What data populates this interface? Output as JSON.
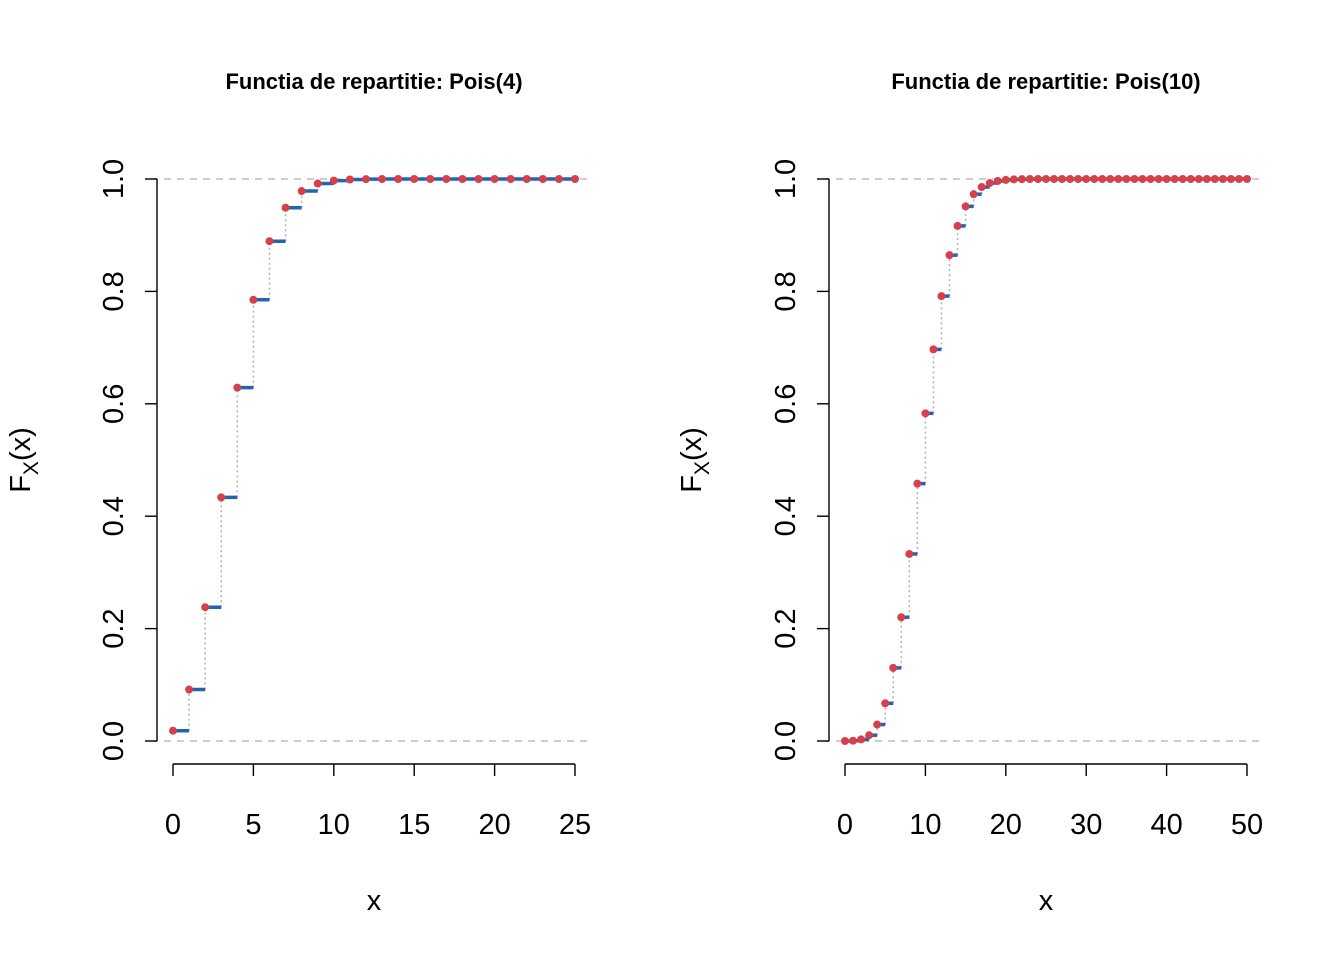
{
  "chart_data": [
    {
      "type": "step-cdf",
      "title": "Functia de repartitie: Pois(4)",
      "xlabel": "x",
      "ylabel": {
        "main": "F",
        "sub": "X",
        "tail": "(x)"
      },
      "lambda": 4,
      "x": [
        0,
        1,
        2,
        3,
        4,
        5,
        6,
        7,
        8,
        9,
        10,
        11,
        12,
        13,
        14,
        15,
        16,
        17,
        18,
        19,
        20,
        21,
        22,
        23,
        24,
        25
      ],
      "y": [
        0.0183,
        0.0916,
        0.2381,
        0.4335,
        0.6288,
        0.7851,
        0.8893,
        0.9489,
        0.9786,
        0.9919,
        0.9972,
        0.9991,
        0.9997,
        0.9999,
        1.0,
        1.0,
        1.0,
        1.0,
        1.0,
        1.0,
        1.0,
        1.0,
        1.0,
        1.0,
        1.0,
        1.0
      ],
      "xlim": [
        0,
        25
      ],
      "ylim": [
        0,
        1
      ],
      "xticks": [
        "0",
        "5",
        "10",
        "15",
        "20",
        "25"
      ],
      "yticks": [
        "0.0",
        "0.2",
        "0.4",
        "0.6",
        "0.8",
        "1.0"
      ],
      "reference_lines": [
        0,
        1
      ]
    },
    {
      "type": "step-cdf",
      "title": "Functia de repartitie: Pois(10)",
      "xlabel": "x",
      "ylabel": {
        "main": "F",
        "sub": "X",
        "tail": "(x)"
      },
      "lambda": 10,
      "x": [
        0,
        1,
        2,
        3,
        4,
        5,
        6,
        7,
        8,
        9,
        10,
        11,
        12,
        13,
        14,
        15,
        16,
        17,
        18,
        19,
        20,
        21,
        22,
        23,
        24,
        25,
        26,
        27,
        28,
        29,
        30,
        31,
        32,
        33,
        34,
        35,
        36,
        37,
        38,
        39,
        40,
        41,
        42,
        43,
        44,
        45,
        46,
        47,
        48,
        49,
        50
      ],
      "y": [
        0.0,
        0.0005,
        0.0028,
        0.0103,
        0.0293,
        0.0671,
        0.1301,
        0.2202,
        0.3328,
        0.4579,
        0.583,
        0.6968,
        0.7916,
        0.8645,
        0.9165,
        0.9513,
        0.973,
        0.9857,
        0.9928,
        0.9965,
        0.9984,
        0.9993,
        0.9997,
        0.9999,
        1.0,
        1.0,
        1.0,
        1.0,
        1.0,
        1.0,
        1.0,
        1.0,
        1.0,
        1.0,
        1.0,
        1.0,
        1.0,
        1.0,
        1.0,
        1.0,
        1.0,
        1.0,
        1.0,
        1.0,
        1.0,
        1.0,
        1.0,
        1.0,
        1.0,
        1.0,
        1.0
      ],
      "xlim": [
        0,
        50
      ],
      "ylim": [
        0,
        1
      ],
      "xticks": [
        "0",
        "10",
        "20",
        "30",
        "40",
        "50"
      ],
      "yticks": [
        "0.0",
        "0.2",
        "0.4",
        "0.6",
        "0.8",
        "1.0"
      ],
      "reference_lines": [
        0,
        1
      ]
    }
  ],
  "colors": {
    "step": "#2166ac",
    "point": "#d6404a",
    "jump": "#b0b0b0",
    "reference": "#bdbdbd",
    "axis": "#000000"
  }
}
